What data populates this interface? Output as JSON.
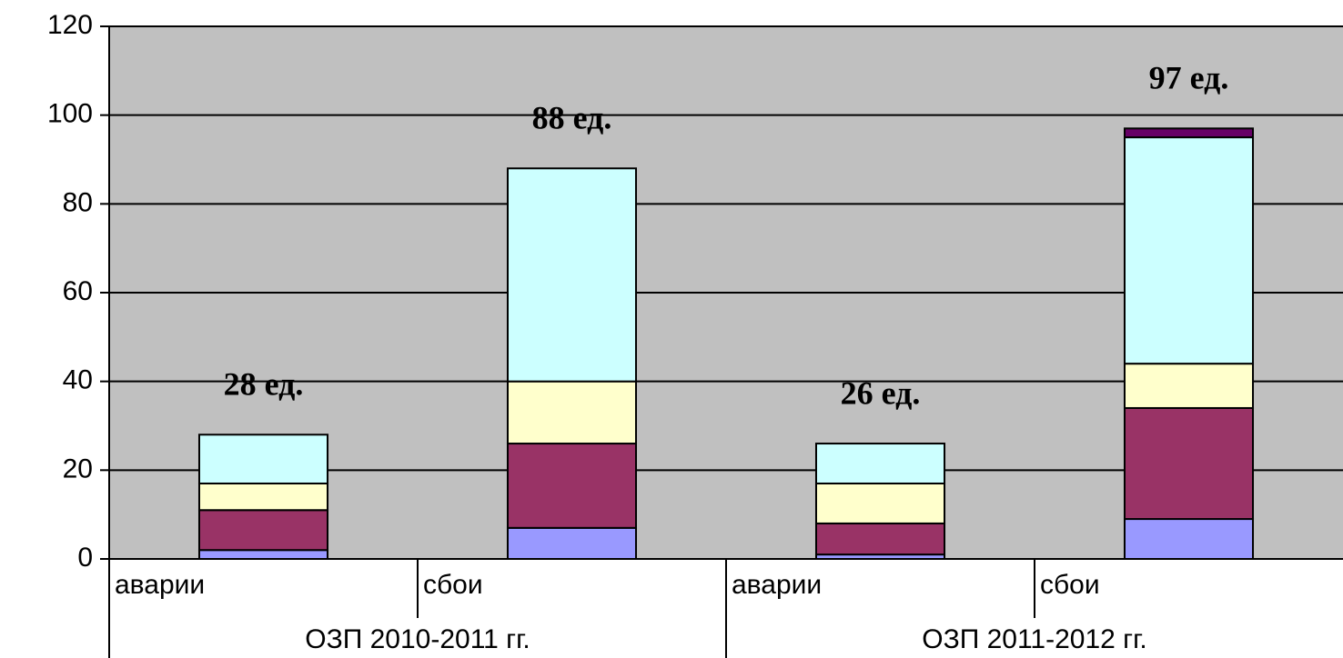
{
  "chart_data": {
    "type": "stacked_bar",
    "categories": [
      "аварии",
      "сбои",
      "аварии",
      "сбои"
    ],
    "groups": [
      "ОЗП 2010-2011 гг.",
      "ОЗП 2011-2012 гг."
    ],
    "series": [
      {
        "color": "#9999ff",
        "values": [
          2,
          7,
          1,
          9
        ]
      },
      {
        "color": "#993366",
        "values": [
          9,
          19,
          7,
          25
        ]
      },
      {
        "color": "#ffffcc",
        "values": [
          6,
          14,
          9,
          10
        ]
      },
      {
        "color": "#ccffff",
        "values": [
          11,
          48,
          9,
          51
        ]
      },
      {
        "color": "#660066",
        "values": [
          0,
          0,
          0,
          2
        ]
      }
    ],
    "totals": [
      28,
      88,
      26,
      97
    ],
    "total_labels": [
      "28 ед.",
      "88 ед.",
      "26 ед.",
      "97 ед."
    ],
    "ylim": [
      0,
      120
    ],
    "yticks": [
      0,
      20,
      40,
      60,
      80,
      100,
      120
    ],
    "grid": true,
    "plot_background": "#c0c0c0"
  }
}
